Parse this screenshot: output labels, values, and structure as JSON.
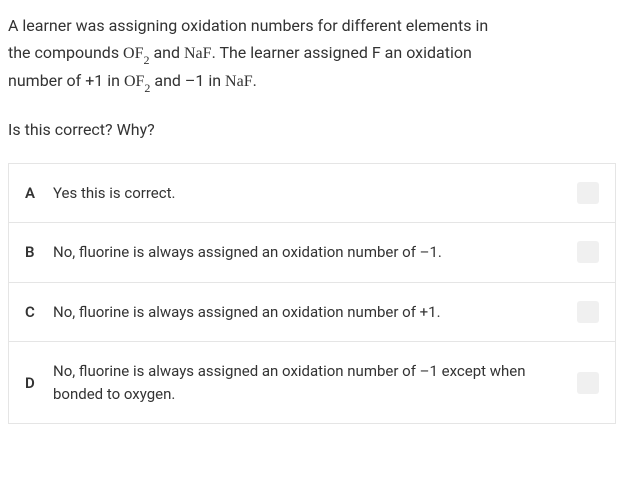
{
  "question": {
    "line1_part1": "A learner was assigning oxidation numbers for different elements in",
    "line2_part1": "the compounds ",
    "formula1_main": "OF",
    "formula1_sub": "2",
    "line2_part2": " and ",
    "formula2": "NaF",
    "line2_part3": ". The learner assigned F an oxidation",
    "line3_part1": "number of +1 in ",
    "formula3_main": "OF",
    "formula3_sub": "2",
    "line3_part2": " and –1 in ",
    "formula4": "NaF",
    "line3_part3": ".",
    "prompt": "Is this correct? Why?"
  },
  "options": [
    {
      "letter": "A",
      "text": "Yes this is correct."
    },
    {
      "letter": "B",
      "text": "No, fluorine is always assigned an oxidation number of –1."
    },
    {
      "letter": "C",
      "text": "No, fluorine is always assigned an oxidation number of +1."
    },
    {
      "letter": "D",
      "text": "No, fluorine is always assigned an oxidation number of –1 except when bonded to oxygen."
    }
  ],
  "styles": {
    "text_color": "#333333",
    "border_color": "#e5e5e5",
    "checkbox_bg": "#f0f0f0",
    "body_bg": "#ffffff",
    "font_size_body": 16,
    "font_size_option": 15
  }
}
